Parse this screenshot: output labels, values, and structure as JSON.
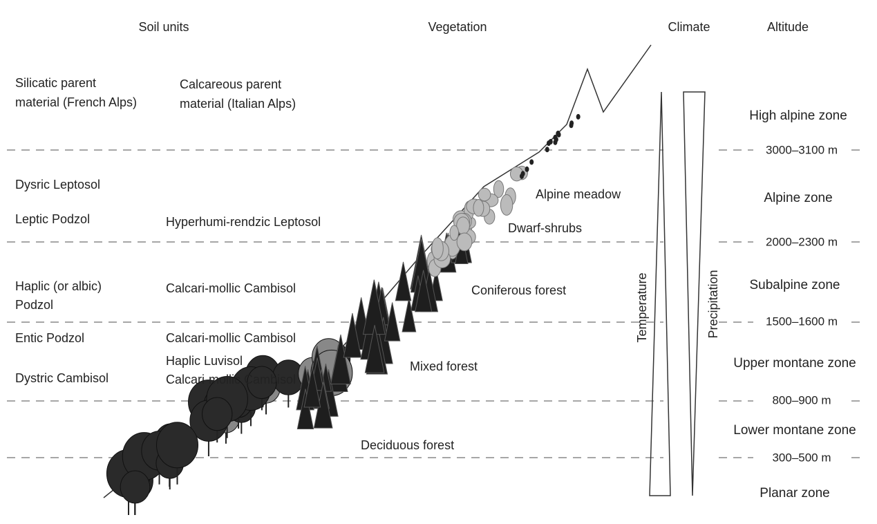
{
  "headers": {
    "soil_units": "Soil units",
    "vegetation": "Vegetation",
    "climate": "Climate",
    "altitude": "Altitude"
  },
  "soil": {
    "silicatic": [
      "Silicatic parent",
      "material (French Alps)"
    ],
    "calcareous": [
      "Calcareous parent",
      "material (Italian Alps)"
    ],
    "alpine_silicatic": [
      "Dysric Leptosol",
      "Leptic Podzol"
    ],
    "alpine_calcareous": "Hyperhumi-rendzic Leptosol",
    "subalpine_silicatic": [
      "Haplic (or albic)",
      "Podzol"
    ],
    "subalpine_calcareous": "Calcari-mollic Cambisol",
    "upper_montane_silicatic": [
      "Entic Podzol",
      "Dystric Cambisol"
    ],
    "upper_montane_calcareous": [
      "Calcari-mollic Cambisol",
      "Haplic Luvisol",
      "Calcari-mollic Cambisol"
    ]
  },
  "vegetation": [
    "Alpine meadow",
    "Dwarf-shrubs",
    "Coniferous forest",
    "Mixed forest",
    "Deciduous forest"
  ],
  "climate": [
    "Temperature",
    "Precipitation"
  ],
  "altitude": {
    "zones": [
      "High alpine zone",
      "Alpine zone",
      "Subalpine zone",
      "Upper montane zone",
      "Lower montane zone",
      "Planar zone"
    ],
    "boundaries": [
      "3000–3100 m",
      "2000–2300 m",
      "1500–1600 m",
      "800–900 m",
      "300–500 m"
    ]
  }
}
